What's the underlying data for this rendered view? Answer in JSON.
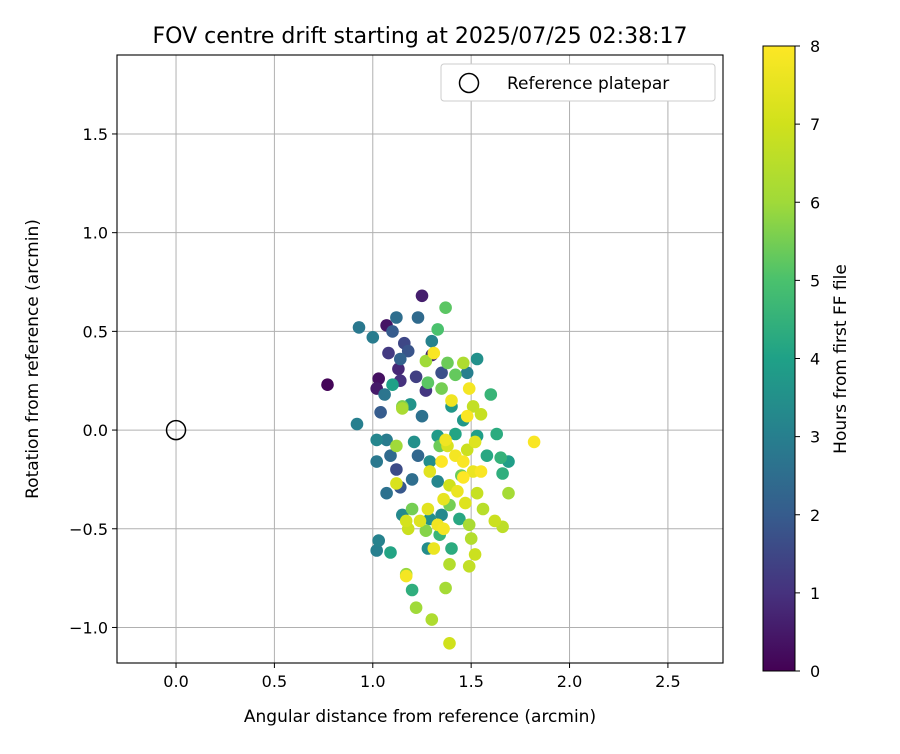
{
  "chart_data": {
    "type": "scatter",
    "title": "FOV centre drift starting at 2025/07/25 02:38:17",
    "xlabel": "Angular distance from reference (arcmin)",
    "ylabel": "Rotation from reference (arcmin)",
    "xlim": [
      -0.3,
      2.78
    ],
    "ylim": [
      -1.18,
      1.9
    ],
    "x_ticks": [
      0.0,
      0.5,
      1.0,
      1.5,
      2.0,
      2.5
    ],
    "x_tick_labels": [
      "0.0",
      "0.5",
      "1.0",
      "1.5",
      "2.0",
      "2.5"
    ],
    "y_ticks": [
      -1.0,
      -0.5,
      0.0,
      0.5,
      1.0,
      1.5
    ],
    "y_tick_labels": [
      "−1.0",
      "−0.5",
      "0.0",
      "0.5",
      "1.0",
      "1.5"
    ],
    "grid": true,
    "legend": {
      "position": "top-right",
      "entries": [
        {
          "label": "Reference platepar",
          "marker": "open-circle"
        }
      ]
    },
    "reference_point": {
      "x": 0.0,
      "y": 0.0
    },
    "colorbar": {
      "label": "Hours from first FF file",
      "colormap": "viridis",
      "range": [
        0,
        8
      ],
      "ticks": [
        0,
        1,
        2,
        3,
        4,
        5,
        6,
        7,
        8
      ],
      "tick_labels": [
        "0",
        "1",
        "2",
        "3",
        "4",
        "5",
        "6",
        "7",
        "8"
      ]
    },
    "points": [
      [
        0.77,
        0.23,
        0.1
      ],
      [
        1.03,
        0.26,
        0.3
      ],
      [
        1.02,
        0.21,
        0.5
      ],
      [
        1.07,
        0.53,
        0.4
      ],
      [
        1.25,
        0.68,
        0.6
      ],
      [
        1.13,
        0.31,
        0.8
      ],
      [
        1.3,
        0.38,
        0.7
      ],
      [
        1.08,
        0.39,
        1.2
      ],
      [
        1.14,
        0.25,
        1.0
      ],
      [
        1.16,
        0.44,
        1.5
      ],
      [
        1.22,
        0.27,
        1.3
      ],
      [
        1.27,
        0.2,
        1.1
      ],
      [
        1.18,
        0.4,
        1.8
      ],
      [
        1.1,
        0.5,
        2.0
      ],
      [
        1.14,
        0.36,
        2.2
      ],
      [
        1.04,
        0.09,
        2.0
      ],
      [
        1.12,
        -0.2,
        1.6
      ],
      [
        1.14,
        -0.29,
        1.9
      ],
      [
        1.35,
        0.29,
        1.7
      ],
      [
        1.23,
        0.57,
        2.4
      ],
      [
        1.12,
        0.57,
        2.5
      ],
      [
        0.93,
        0.52,
        2.8
      ],
      [
        1.0,
        0.47,
        2.9
      ],
      [
        1.06,
        0.18,
        2.7
      ],
      [
        1.3,
        0.45,
        3.1
      ],
      [
        1.25,
        0.07,
        2.6
      ],
      [
        0.92,
        0.03,
        3.0
      ],
      [
        1.02,
        -0.05,
        3.2
      ],
      [
        1.07,
        -0.05,
        2.9
      ],
      [
        1.02,
        -0.16,
        2.8
      ],
      [
        1.07,
        -0.32,
        2.6
      ],
      [
        1.09,
        -0.13,
        2.4
      ],
      [
        1.03,
        -0.56,
        3.1
      ],
      [
        1.02,
        -0.61,
        3.0
      ],
      [
        1.15,
        -0.43,
        3.3
      ],
      [
        1.23,
        -0.13,
        2.3
      ],
      [
        1.2,
        -0.25,
        2.5
      ],
      [
        1.29,
        -0.16,
        3.4
      ],
      [
        1.33,
        -0.26,
        3.2
      ],
      [
        1.29,
        -0.45,
        3.5
      ],
      [
        1.35,
        -0.43,
        3.3
      ],
      [
        1.28,
        -0.6,
        3.4
      ],
      [
        1.21,
        -0.06,
        3.5
      ],
      [
        1.1,
        0.23,
        4.0
      ],
      [
        1.19,
        0.13,
        3.6
      ],
      [
        1.4,
        0.12,
        3.7
      ],
      [
        1.48,
        0.29,
        3.0
      ],
      [
        1.53,
        0.36,
        3.5
      ],
      [
        1.46,
        0.05,
        3.7
      ],
      [
        1.33,
        -0.03,
        3.8
      ],
      [
        1.42,
        -0.02,
        4.1
      ],
      [
        1.53,
        -0.03,
        3.9
      ],
      [
        1.58,
        -0.13,
        4.2
      ],
      [
        1.63,
        -0.02,
        4.3
      ],
      [
        1.69,
        -0.16,
        3.9
      ],
      [
        1.65,
        -0.14,
        4.5
      ],
      [
        1.66,
        -0.22,
        4.4
      ],
      [
        1.6,
        0.18,
        4.6
      ],
      [
        1.44,
        -0.45,
        4.2
      ],
      [
        1.4,
        -0.6,
        4.3
      ],
      [
        1.09,
        -0.62,
        4.1
      ],
      [
        1.2,
        -0.81,
        4.4
      ],
      [
        1.34,
        -0.53,
        4.6
      ],
      [
        1.37,
        0.62,
        5.2
      ],
      [
        1.33,
        0.51,
        5.0
      ],
      [
        1.38,
        0.34,
        5.4
      ],
      [
        1.42,
        0.28,
        5.3
      ],
      [
        1.35,
        0.21,
        5.5
      ],
      [
        1.15,
        0.12,
        5.6
      ],
      [
        1.28,
        0.24,
        5.2
      ],
      [
        1.34,
        -0.08,
        5.4
      ],
      [
        1.2,
        -0.4,
        5.5
      ],
      [
        1.27,
        -0.51,
        5.7
      ],
      [
        1.39,
        -0.38,
        5.5
      ],
      [
        1.45,
        -0.23,
        5.4
      ],
      [
        1.17,
        -0.73,
        5.9
      ],
      [
        1.22,
        -0.9,
        6.0
      ],
      [
        1.3,
        -0.96,
        6.3
      ],
      [
        1.37,
        -0.8,
        6.1
      ],
      [
        1.39,
        -0.68,
        6.4
      ],
      [
        1.49,
        -0.48,
        6.2
      ],
      [
        1.56,
        -0.4,
        6.5
      ],
      [
        1.53,
        -0.32,
        6.8
      ],
      [
        1.69,
        -0.32,
        6.1
      ],
      [
        1.62,
        -0.46,
        6.9
      ],
      [
        1.66,
        -0.49,
        6.6
      ],
      [
        1.5,
        -0.55,
        6.4
      ],
      [
        1.52,
        -0.63,
        6.9
      ],
      [
        1.49,
        -0.69,
        6.7
      ],
      [
        1.39,
        -1.08,
        7.0
      ],
      [
        1.12,
        -0.08,
        6.0
      ],
      [
        1.15,
        0.11,
        6.2
      ],
      [
        1.27,
        0.35,
        6.0
      ],
      [
        1.46,
        0.34,
        6.3
      ],
      [
        1.51,
        0.12,
        6.7
      ],
      [
        1.55,
        0.08,
        6.8
      ],
      [
        1.48,
        -0.1,
        6.9
      ],
      [
        1.38,
        -0.08,
        7.2
      ],
      [
        1.29,
        -0.21,
        7.4
      ],
      [
        1.39,
        -0.28,
        7.0
      ],
      [
        1.47,
        -0.37,
        7.3
      ],
      [
        1.31,
        -0.6,
        7.6
      ],
      [
        1.36,
        -0.5,
        7.8
      ],
      [
        1.24,
        -0.46,
        7.3
      ],
      [
        1.17,
        -0.46,
        7.1
      ],
      [
        1.18,
        -0.5,
        6.9
      ],
      [
        1.12,
        -0.27,
        7.2
      ],
      [
        1.4,
        0.15,
        7.7
      ],
      [
        1.48,
        0.07,
        7.9
      ],
      [
        1.49,
        0.21,
        7.8
      ],
      [
        1.31,
        0.39,
        7.9
      ],
      [
        1.37,
        -0.05,
        7.7
      ],
      [
        1.42,
        -0.13,
        7.8
      ],
      [
        1.46,
        -0.24,
        8.0
      ],
      [
        1.51,
        -0.21,
        7.6
      ],
      [
        1.55,
        -0.21,
        7.9
      ],
      [
        1.35,
        -0.16,
        8.0
      ],
      [
        1.43,
        -0.31,
        7.6
      ],
      [
        1.36,
        -0.35,
        7.5
      ],
      [
        1.33,
        -0.48,
        7.7
      ],
      [
        1.82,
        -0.06,
        7.9
      ],
      [
        1.17,
        -0.74,
        7.8
      ],
      [
        1.28,
        -0.4,
        7.4
      ],
      [
        1.46,
        -0.16,
        7.9
      ],
      [
        1.52,
        -0.06,
        7.3
      ]
    ]
  }
}
